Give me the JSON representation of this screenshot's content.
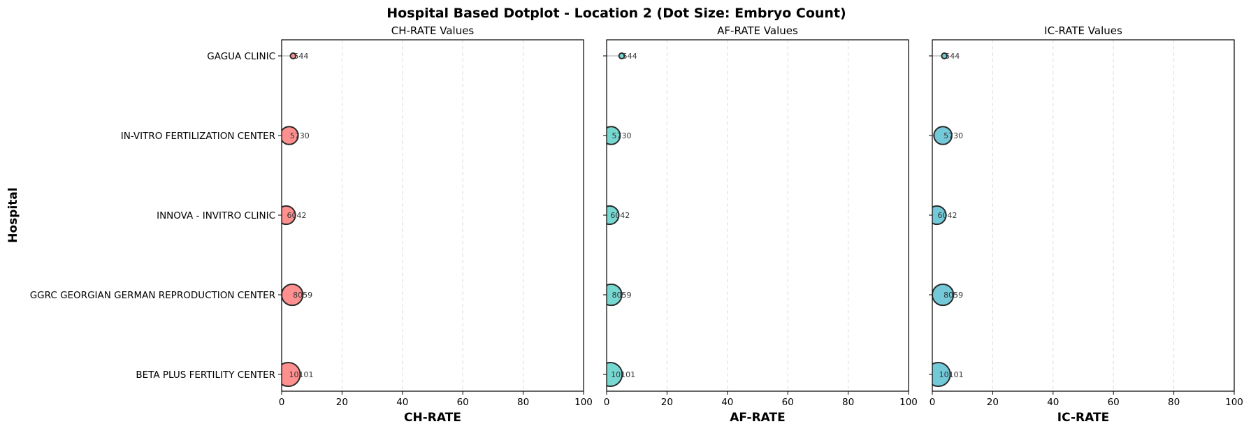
{
  "chart_data": {
    "type": "scatter",
    "title": "Hospital Based Dotplot - Location 2 (Dot Size: Embryo Count)",
    "ylabel": "Hospital",
    "hospitals": [
      "GAGUA CLINIC",
      "IN-VITRO FERTILIZATION CENTER",
      "INNOVA - INVITRO CLINIC",
      "GGRC GEORGIAN GERMAN REPRODUCTION CENTER",
      "BETA PLUS FERTILITY CENTER"
    ],
    "embryo_counts": [
      "544",
      "5730",
      "6042",
      "8059",
      "10101"
    ],
    "xticks": [
      "0",
      "20",
      "40",
      "60",
      "80",
      "100"
    ],
    "xlim": [
      0,
      100
    ],
    "grid": "x-dashed",
    "panels": [
      {
        "subtitle": "CH-RATE Values",
        "xlabel": "CH-RATE",
        "color": "#ff8a8a",
        "values": [
          3.8,
          2.5,
          1.5,
          3.5,
          2.2
        ]
      },
      {
        "subtitle": "AF-RATE Values",
        "xlabel": "AF-RATE",
        "color": "#6fd6cf",
        "values": [
          5.0,
          1.5,
          1.0,
          1.5,
          1.2
        ]
      },
      {
        "subtitle": "IC-RATE Values",
        "xlabel": "IC-RATE",
        "color": "#6cc6d6",
        "values": [
          4.0,
          3.5,
          1.5,
          3.5,
          2.0
        ]
      }
    ]
  }
}
